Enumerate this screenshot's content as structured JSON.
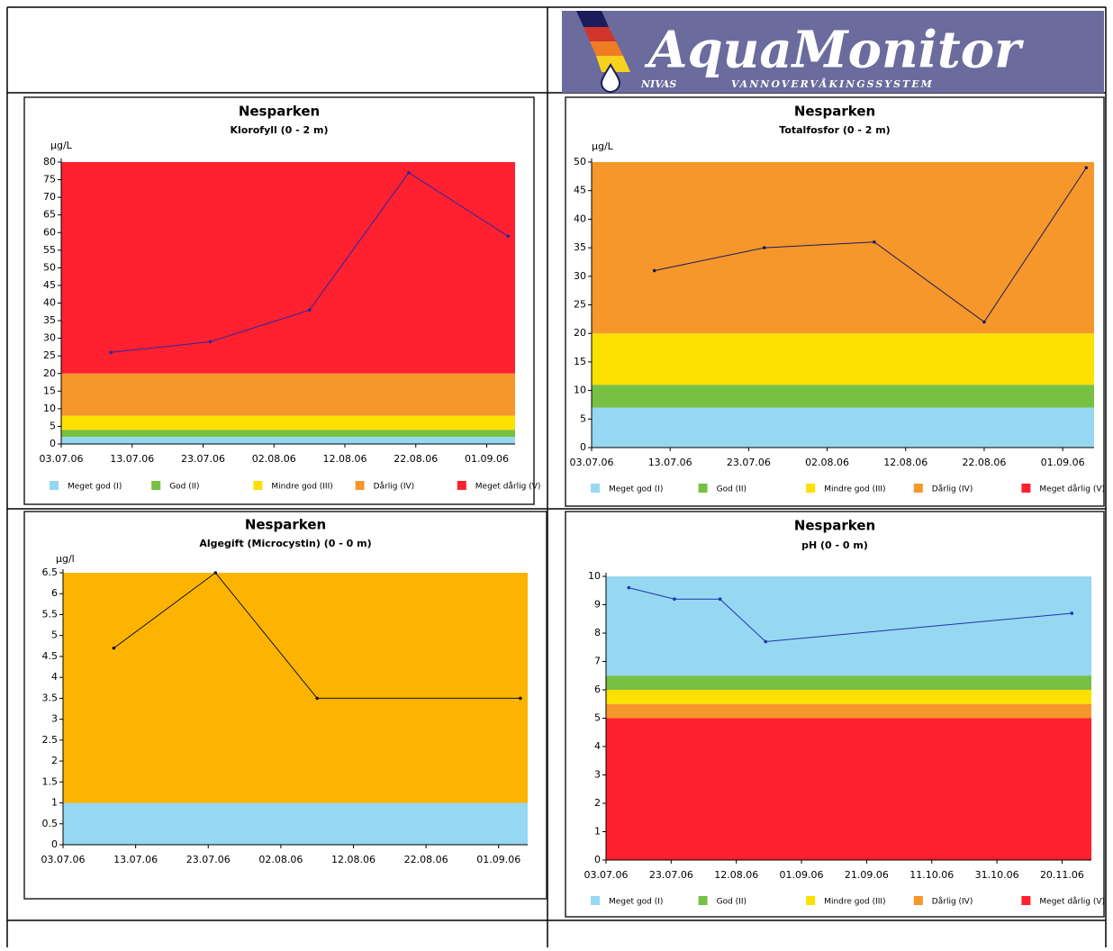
{
  "header": {
    "logo_title": "AquaMonitor",
    "logo_left": "NIVAS",
    "logo_right": "VANNOVERVÅKINGSSYSTEM"
  },
  "chart_data": [
    {
      "type": "line",
      "title": "Nesparken",
      "subtitle": "Klorofyll (0 - 2 m)",
      "y_label": "µg/L",
      "xlim": [
        "03.07.06",
        "05.09.06"
      ],
      "xticks": [
        "03.07.06",
        "13.07.06",
        "23.07.06",
        "02.08.06",
        "12.08.06",
        "22.08.06",
        "01.09.06"
      ],
      "ylim": [
        0,
        80
      ],
      "yticks": [
        0,
        5,
        10,
        15,
        20,
        25,
        30,
        35,
        40,
        45,
        50,
        55,
        60,
        65,
        70,
        75,
        80
      ],
      "legend": true,
      "classes": [
        {
          "name": "Meget god (I)",
          "color": "#96d7f2",
          "range": [
            0,
            2
          ]
        },
        {
          "name": "God (II)",
          "color": "#76c043",
          "range": [
            2,
            4
          ]
        },
        {
          "name": "Mindre god (III)",
          "color": "#fbe000",
          "range": [
            4,
            8
          ]
        },
        {
          "name": "Dårlig (IV)",
          "color": "#f5972a",
          "range": [
            8,
            20
          ]
        },
        {
          "name": "Meget dårlig (V)",
          "color": "#ff2030",
          "range": [
            20,
            80
          ]
        }
      ],
      "series": [
        {
          "color": "#2828a0",
          "x": [
            "10.07.06",
            "24.07.06",
            "07.08.06",
            "21.08.06",
            "04.09.06"
          ],
          "values": [
            26,
            29,
            38,
            77,
            59
          ]
        }
      ]
    },
    {
      "type": "line",
      "title": "Nesparken",
      "subtitle": "Totalfosfor (0 - 2 m)",
      "y_label": "µg/L",
      "xlim": [
        "03.07.06",
        "05.09.06"
      ],
      "xticks": [
        "03.07.06",
        "13.07.06",
        "23.07.06",
        "02.08.06",
        "12.08.06",
        "22.08.06",
        "01.09.06"
      ],
      "ylim": [
        0,
        50
      ],
      "yticks": [
        0,
        5,
        10,
        15,
        20,
        25,
        30,
        35,
        40,
        45,
        50
      ],
      "legend": true,
      "classes": [
        {
          "name": "Meget god (I)",
          "color": "#96d7f2",
          "range": [
            0,
            7
          ]
        },
        {
          "name": "God (II)",
          "color": "#76c043",
          "range": [
            7,
            11
          ]
        },
        {
          "name": "Mindre god (III)",
          "color": "#fbe000",
          "range": [
            11,
            20
          ]
        },
        {
          "name": "Dårlig (IV)",
          "color": "#f5972a",
          "range": [
            20,
            50
          ]
        },
        {
          "name": "Meget dårlig (V)",
          "color": "#ff2030",
          "range": null
        }
      ],
      "series": [
        {
          "color": "#1a1a60",
          "x": [
            "11.07.06",
            "25.07.06",
            "08.08.06",
            "22.08.06",
            "04.09.06"
          ],
          "values": [
            31,
            35,
            36,
            22,
            49
          ]
        }
      ]
    },
    {
      "type": "line",
      "title": "Nesparken",
      "subtitle": "Algegift (Microcystin) (0 - 0 m)",
      "y_label": "µg/l",
      "xlim": [
        "03.07.06",
        "05.09.06"
      ],
      "xticks": [
        "03.07.06",
        "13.07.06",
        "23.07.06",
        "02.08.06",
        "12.08.06",
        "22.08.06",
        "01.09.06"
      ],
      "ylim": [
        0,
        6.5
      ],
      "yticks": [
        0,
        0.5,
        1,
        1.5,
        2,
        2.5,
        3,
        3.5,
        4,
        4.5,
        5,
        5.5,
        6,
        6.5
      ],
      "legend": false,
      "classes": [
        {
          "color": "#96d7f2",
          "range": [
            0,
            1
          ]
        },
        {
          "color": "#fcb400",
          "range": [
            1,
            6.5
          ]
        }
      ],
      "series": [
        {
          "color": "#111111",
          "x": [
            "10.07.06",
            "24.07.06",
            "07.08.06",
            "04.09.06"
          ],
          "values": [
            4.7,
            6.5,
            3.5,
            3.5
          ]
        }
      ]
    },
    {
      "type": "line",
      "title": "Nesparken",
      "subtitle": "pH (0 - 0 m)",
      "xlim": [
        "03.07.06",
        "29.11.06"
      ],
      "xticks": [
        "03.07.06",
        "23.07.06",
        "12.08.06",
        "01.09.06",
        "21.09.06",
        "11.10.06",
        "31.10.06",
        "20.11.06"
      ],
      "ylim": [
        0,
        10
      ],
      "yticks": [
        0,
        1,
        2,
        3,
        4,
        5,
        6,
        7,
        8,
        9,
        10
      ],
      "legend": true,
      "classes": [
        {
          "name": "Meget god (I)",
          "color": "#96d7f2",
          "range": [
            6.5,
            10
          ]
        },
        {
          "name": "God (II)",
          "color": "#76c043",
          "range": [
            6,
            6.5
          ]
        },
        {
          "name": "Mindre god (III)",
          "color": "#fbe000",
          "range": [
            5.5,
            6
          ]
        },
        {
          "name": "Dårlig (IV)",
          "color": "#f5972a",
          "range": [
            5,
            5.5
          ]
        },
        {
          "name": "Meget dårlig (V)",
          "color": "#ff2030",
          "range": [
            0,
            5
          ]
        }
      ],
      "series": [
        {
          "color": "#2233aa",
          "x": [
            "10.07.06",
            "24.07.06",
            "07.08.06",
            "21.08.06",
            "23.11.06"
          ],
          "values": [
            9.6,
            9.2,
            9.2,
            7.7,
            8.7
          ]
        }
      ]
    }
  ]
}
